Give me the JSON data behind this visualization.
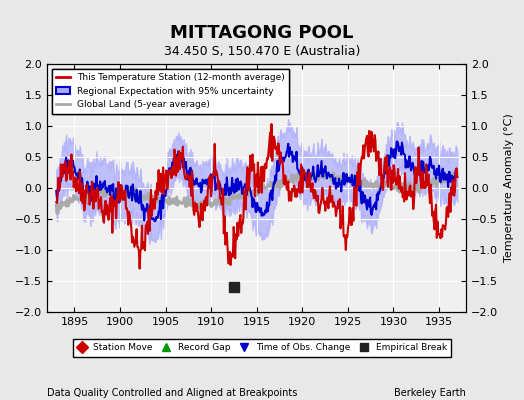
{
  "title": "MITTAGONG POOL",
  "subtitle": "34.450 S, 150.470 E (Australia)",
  "xlabel_bottom": "Data Quality Controlled and Aligned at Breakpoints",
  "xlabel_right": "Berkeley Earth",
  "ylabel": "Temperature Anomaly (°C)",
  "xlim": [
    1892,
    1938
  ],
  "ylim": [
    -2,
    2
  ],
  "yticks": [
    -2,
    -1.5,
    -1,
    -0.5,
    0,
    0.5,
    1,
    1.5,
    2
  ],
  "xticks": [
    1895,
    1900,
    1905,
    1910,
    1915,
    1920,
    1925,
    1930,
    1935
  ],
  "bg_color": "#e8e8e8",
  "plot_bg_color": "#f0f0f0",
  "grid_color": "#ffffff",
  "station_color": "#cc0000",
  "regional_color": "#0000cc",
  "regional_fill_color": "#aaaaff",
  "global_color": "#aaaaaa",
  "legend_items": [
    {
      "label": "This Temperature Station (12-month average)",
      "color": "#cc0000",
      "lw": 2
    },
    {
      "label": "Regional Expectation with 95% uncertainty",
      "color": "#0000cc",
      "fill": "#aaaaff"
    },
    {
      "label": "Global Land (5-year average)",
      "color": "#aaaaaa",
      "lw": 2
    }
  ],
  "bottom_markers": [
    {
      "type": "empirical_break",
      "year": 1912.5,
      "y": -1.6,
      "color": "#222222"
    }
  ],
  "marker_legend": [
    {
      "label": "Station Move",
      "marker": "D",
      "color": "#cc0000"
    },
    {
      "label": "Record Gap",
      "marker": "^",
      "color": "#009900"
    },
    {
      "label": "Time of Obs. Change",
      "marker": "v",
      "color": "#0000cc"
    },
    {
      "label": "Empirical Break",
      "marker": "s",
      "color": "#222222"
    }
  ]
}
